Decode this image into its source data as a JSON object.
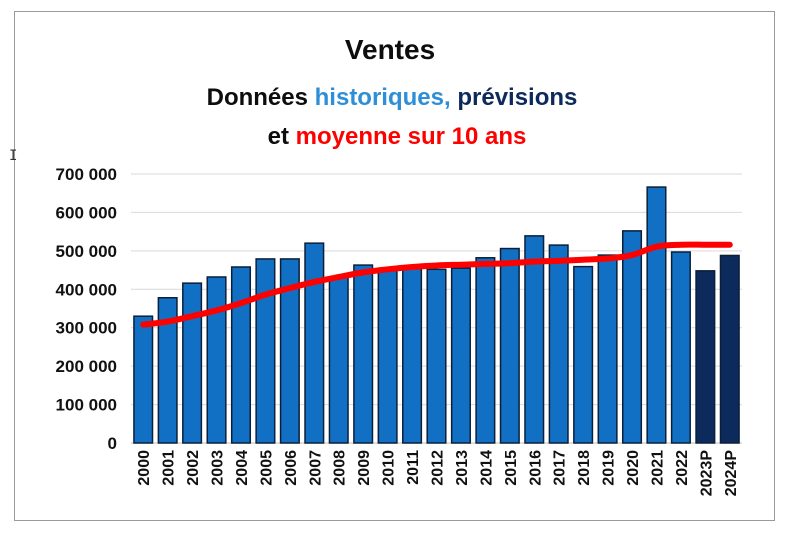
{
  "chart_data": {
    "type": "bar",
    "title": "Ventes",
    "subtitle": {
      "line1_parts": [
        "Données ",
        "historiques,",
        " prévisions"
      ],
      "line2_parts": [
        "et ",
        "moyenne sur 10 ans"
      ]
    },
    "categories": [
      "2000",
      "2001",
      "2002",
      "2003",
      "2004",
      "2005",
      "2006",
      "2007",
      "2008",
      "2009",
      "2010",
      "2011",
      "2012",
      "2013",
      "2014",
      "2015",
      "2016",
      "2017",
      "2018",
      "2019",
      "2020",
      "2021",
      "2022",
      "2023P",
      "2024P"
    ],
    "series": [
      {
        "values": [
          330000,
          378000,
          416000,
          432000,
          458000,
          479000,
          479000,
          520000,
          430000,
          463000,
          453000,
          460000,
          452000,
          455000,
          482000,
          506000,
          539000,
          515000,
          459000,
          489000,
          552000,
          666000,
          497000,
          448000,
          488000
        ],
        "kinds": [
          "historique",
          "historique",
          "historique",
          "historique",
          "historique",
          "historique",
          "historique",
          "historique",
          "historique",
          "historique",
          "historique",
          "historique",
          "historique",
          "historique",
          "historique",
          "historique",
          "historique",
          "historique",
          "historique",
          "historique",
          "historique",
          "historique",
          "historique",
          "prévision",
          "prévision"
        ]
      },
      {
        "type": "line",
        "values": [
          308000,
          316000,
          330000,
          345000,
          364000,
          386000,
          403000,
          419000,
          432000,
          444000,
          452000,
          458000,
          462000,
          464000,
          466000,
          468000,
          472000,
          474000,
          477000,
          480000,
          489000,
          511000,
          516000,
          516000,
          516000
        ]
      }
    ],
    "ylim": [
      0,
      700000
    ],
    "yticks": [
      "0",
      "100 000",
      "200 000",
      "300 000",
      "400 000",
      "500 000",
      "600 000",
      "700 000"
    ],
    "grid": true,
    "colors": {
      "historique": "#1170c4",
      "prevision": "#0c2a5c",
      "moyenne": "#ff0000",
      "historiques_text": "#2e8fd8",
      "previsions_text": "#0c2a5c",
      "text": "#0d0d0d",
      "grid": "#d9d9d9"
    }
  },
  "cursor_glyph": "I"
}
